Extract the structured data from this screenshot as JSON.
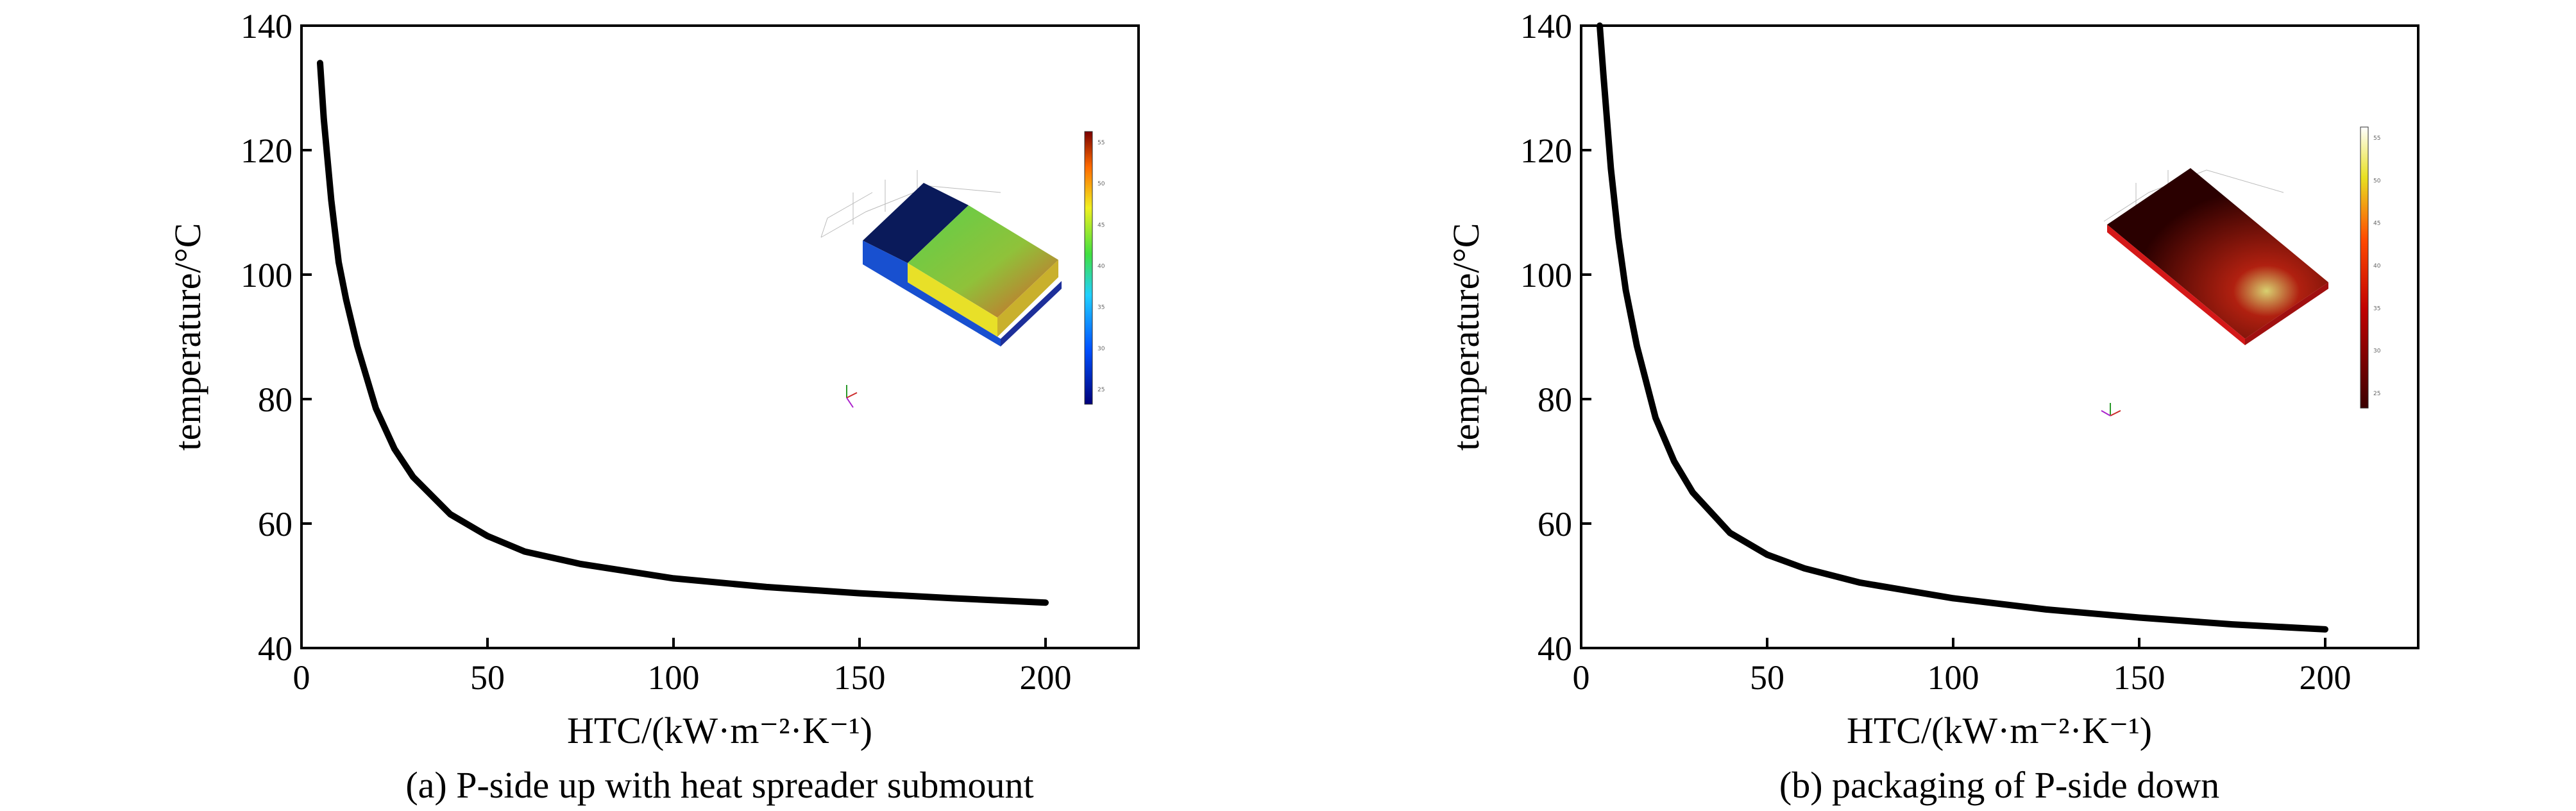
{
  "chart_data": [
    {
      "type": "line",
      "caption": "(a) P-side up with heat spreader submount",
      "xlabel": "HTC/(kW·m⁻²·K⁻¹)",
      "ylabel": "temperature/°C",
      "xlim": [
        0,
        225
      ],
      "ylim": [
        40,
        140
      ],
      "xticks": [
        0,
        50,
        100,
        150,
        200
      ],
      "yticks": [
        40,
        60,
        80,
        100,
        120,
        140
      ],
      "grid": false,
      "series": [
        {
          "x": [
            5,
            6,
            8,
            10,
            12,
            15,
            20,
            25,
            30,
            40,
            50,
            60,
            75,
            100,
            125,
            150,
            175,
            200
          ],
          "y": [
            134,
            125,
            112,
            102,
            96,
            88.5,
            78.5,
            72,
            67.5,
            61.5,
            58,
            55.5,
            53.5,
            51.2,
            49.8,
            48.8,
            48,
            47.3
          ]
        }
      ],
      "inset": {
        "description_colors": [
          "#0a1a5a",
          "#3fbf3f",
          "#d0502a"
        ],
        "colorbar_ticks": [
          "55",
          "50",
          "45",
          "40",
          "35",
          "30",
          "25"
        ]
      }
    },
    {
      "type": "line",
      "caption": "(b) packaging of P-side down",
      "xlabel": "HTC/(kW·m⁻²·K⁻¹)",
      "ylabel": "temperature/°C",
      "xlim": [
        0,
        225
      ],
      "ylim": [
        40,
        140
      ],
      "xticks": [
        0,
        50,
        100,
        150,
        200
      ],
      "yticks": [
        40,
        60,
        80,
        100,
        120,
        140
      ],
      "grid": false,
      "series": [
        {
          "x": [
            5,
            6,
            8,
            10,
            12,
            15,
            20,
            25,
            30,
            40,
            50,
            60,
            75,
            100,
            125,
            150,
            175,
            200
          ],
          "y": [
            140,
            132,
            117,
            106,
            97.5,
            88.5,
            77,
            70,
            65,
            58.5,
            55,
            52.8,
            50.5,
            48,
            46.2,
            44.9,
            43.8,
            43
          ]
        }
      ],
      "inset": {
        "colorbar_ticks": [
          "55",
          "50",
          "45",
          "40",
          "35",
          "30",
          "25"
        ]
      }
    }
  ]
}
